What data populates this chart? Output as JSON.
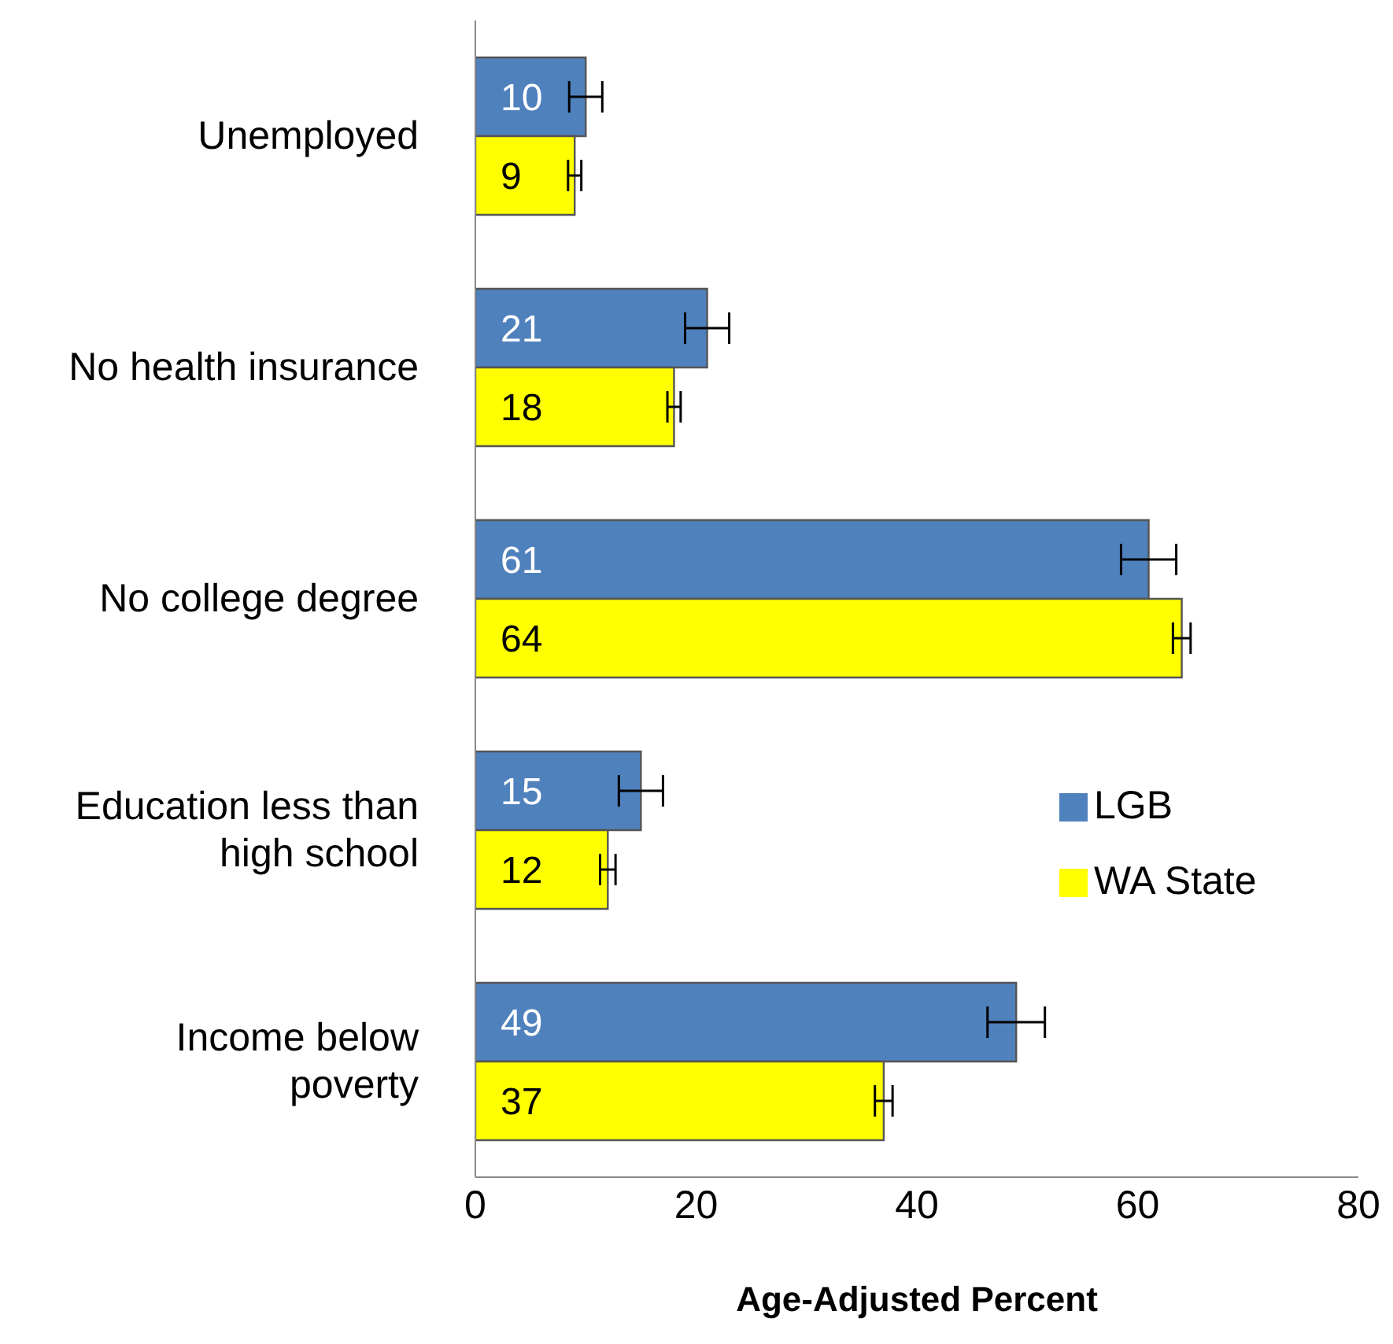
{
  "chart_data": {
    "type": "bar",
    "orientation": "horizontal",
    "xlabel": "Age-Adjusted Percent",
    "categories": [
      "Unemployed",
      "No health insurance",
      "No college degree",
      "Education less than high school",
      "Income below poverty"
    ],
    "series": [
      {
        "name": "LGB",
        "color": "#4f81bd",
        "values": [
          10,
          21,
          61,
          15,
          49
        ],
        "errors": [
          1.5,
          2,
          2.5,
          2,
          2.6
        ]
      },
      {
        "name": "WA State",
        "color": "#ffff00",
        "values": [
          9,
          18,
          64,
          12,
          37
        ],
        "errors": [
          0.6,
          0.6,
          0.8,
          0.7,
          0.8
        ]
      }
    ],
    "xlim": [
      0,
      80
    ],
    "xticks": [
      0,
      20,
      40,
      60,
      80
    ],
    "data_labels": true,
    "legend": "right",
    "grid": false
  }
}
